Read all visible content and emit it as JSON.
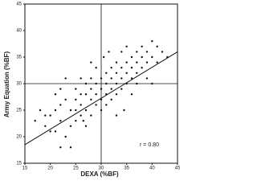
{
  "chart_data": {
    "type": "scatter",
    "xlabel": "DEXA (%BF)",
    "ylabel": "Army Equation (%BF)",
    "annotation": "r = 0.80",
    "x": [
      17,
      18,
      19,
      19,
      20,
      20,
      21,
      21,
      21,
      22,
      22,
      22,
      23,
      23,
      23,
      24,
      24,
      24,
      25,
      25,
      25,
      25,
      26,
      26,
      26,
      26,
      27,
      27,
      27,
      27,
      28,
      28,
      28,
      28,
      29,
      29,
      29,
      29,
      30,
      30,
      30,
      30,
      31,
      31,
      31,
      31,
      32,
      32,
      32,
      32,
      33,
      33,
      33,
      33,
      34,
      34,
      34,
      34,
      35,
      35,
      35,
      35,
      36,
      36,
      36,
      37,
      37,
      37,
      37,
      38,
      38,
      38,
      39,
      39,
      39,
      40,
      40,
      40,
      41,
      41,
      42,
      33,
      28,
      36,
      22,
      43,
      30.5,
      26.5,
      31.5,
      34.5
    ],
    "values": [
      23,
      25,
      22,
      24,
      21,
      24,
      21,
      25,
      28,
      26,
      23,
      29,
      27,
      31,
      20,
      18,
      25,
      22,
      25,
      27,
      23,
      29,
      26,
      24,
      28,
      31,
      25,
      28,
      22,
      30,
      27,
      29,
      31,
      24,
      26,
      28,
      30,
      33,
      27,
      29,
      31,
      25,
      28,
      30,
      32,
      26,
      29,
      31,
      33,
      27,
      30,
      32,
      34,
      28,
      31,
      33,
      36,
      29,
      32,
      34,
      30,
      37,
      33,
      35,
      31,
      34,
      36,
      30,
      32,
      35,
      33,
      37,
      34,
      31,
      36,
      35,
      38,
      30,
      34,
      37,
      36,
      24,
      34,
      28,
      18,
      35,
      35,
      23,
      36,
      25
    ],
    "color": "#111",
    "xlim": [
      15,
      45
    ],
    "ylim": [
      15,
      45
    ],
    "xticks": [
      15,
      20,
      25,
      30,
      35,
      40,
      45
    ],
    "yticks": [
      15,
      20,
      25,
      30,
      35,
      40,
      45
    ],
    "reference_lines": {
      "x": 30,
      "y": 30
    },
    "regression_line": {
      "x": [
        15,
        45
      ],
      "y": [
        18.5,
        36
      ]
    }
  }
}
